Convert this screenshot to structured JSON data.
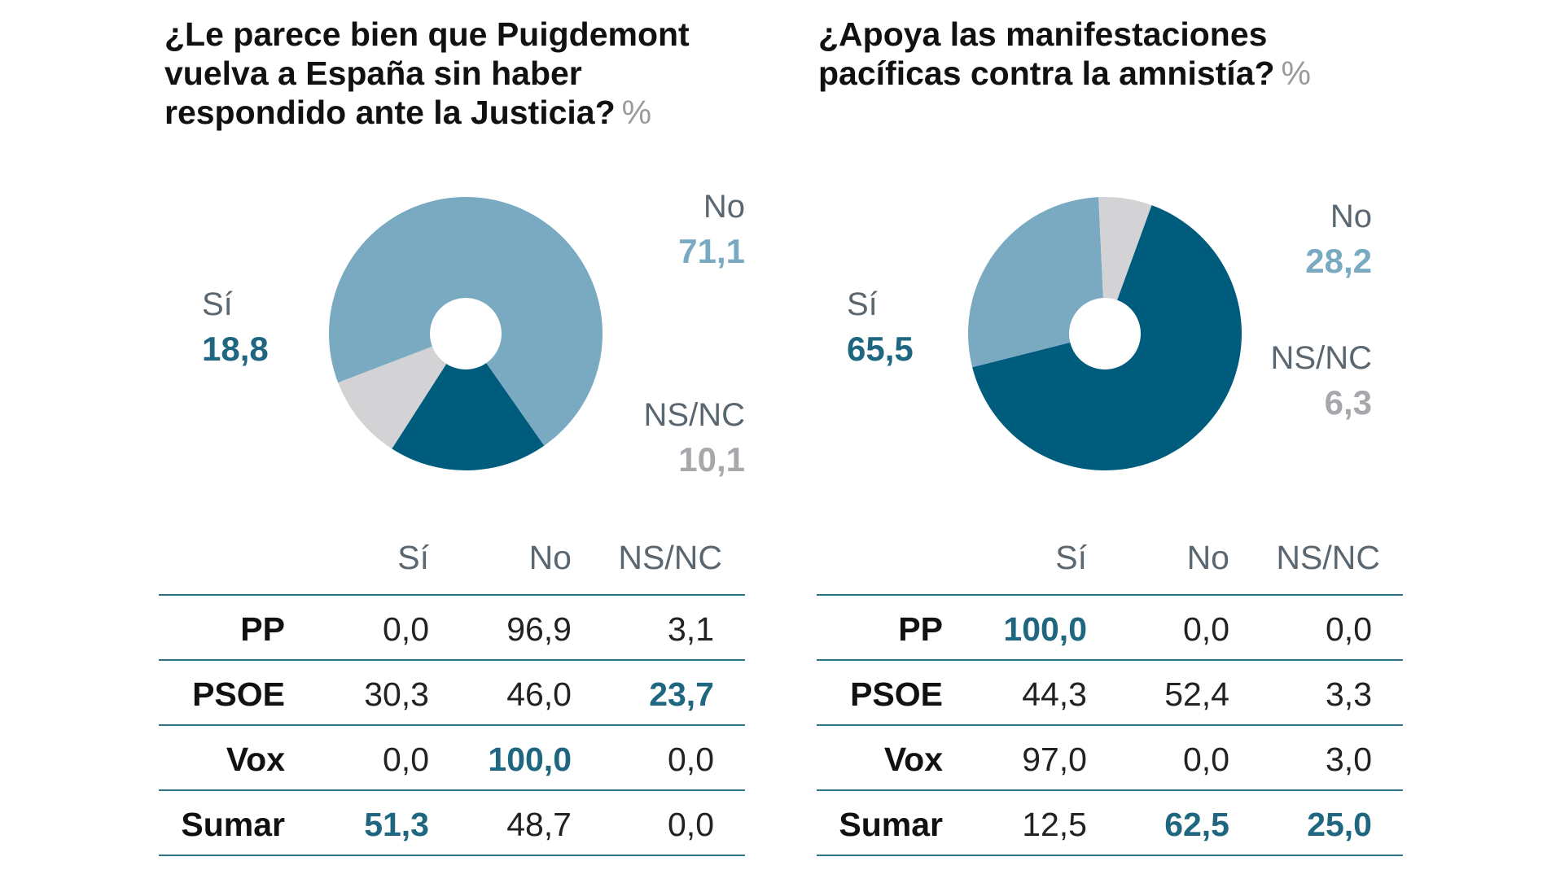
{
  "chart_data": [
    {
      "type": "pie",
      "title": "¿Le parece bien que Puigdemont vuelva a España sin haber respondido ante la Justicia?",
      "unit": "%",
      "slices": [
        {
          "label": "Sí",
          "value": "18,8",
          "number": 18.8,
          "color": "#005c7c"
        },
        {
          "label": "No",
          "value": "71,1",
          "number": 71.1,
          "color": "#7aaac2"
        },
        {
          "label": "NS/NC",
          "value": "10,1",
          "number": 10.1,
          "color": "#d3d3d6"
        }
      ],
      "table": {
        "columns": [
          "Sí",
          "No",
          "NS/NC"
        ],
        "rows": [
          {
            "party": "PP",
            "values": [
              "0,0",
              "96,9",
              "3,1"
            ],
            "highlight": null
          },
          {
            "party": "PSOE",
            "values": [
              "30,3",
              "46,0",
              "23,7"
            ],
            "highlight": 2
          },
          {
            "party": "Vox",
            "values": [
              "0,0",
              "100,0",
              "0,0"
            ],
            "highlight": 1
          },
          {
            "party": "Sumar",
            "values": [
              "51,3",
              "48,7",
              "0,0"
            ],
            "highlight": 0
          }
        ]
      }
    },
    {
      "type": "pie",
      "title": "¿Apoya las manifestaciones pacíficas contra la amnistía?",
      "unit": "%",
      "slices": [
        {
          "label": "Sí",
          "value": "65,5",
          "number": 65.5,
          "color": "#005c7c"
        },
        {
          "label": "No",
          "value": "28,2",
          "number": 28.2,
          "color": "#7aaac2"
        },
        {
          "label": "NS/NC",
          "value": "6,3",
          "number": 6.3,
          "color": "#d3d3d6"
        }
      ],
      "table": {
        "columns": [
          "Sí",
          "No",
          "NS/NC"
        ],
        "rows": [
          {
            "party": "PP",
            "values": [
              "100,0",
              "0,0",
              "0,0"
            ],
            "highlight": 0
          },
          {
            "party": "PSOE",
            "values": [
              "44,3",
              "52,4",
              "3,3"
            ],
            "highlight": null
          },
          {
            "party": "Vox",
            "values": [
              "97,0",
              "0,0",
              "3,0"
            ],
            "highlight": null
          },
          {
            "party": "Sumar",
            "values": [
              "12,5",
              "62,5",
              "25,0"
            ],
            "highlight": [
              1,
              2
            ]
          }
        ]
      }
    }
  ]
}
